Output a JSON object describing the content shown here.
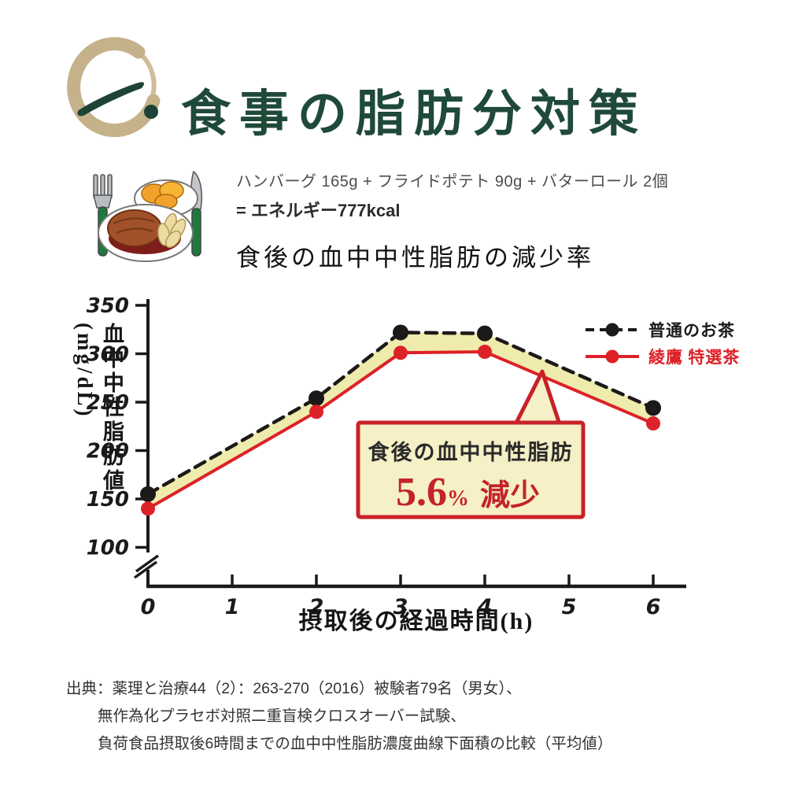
{
  "header": {
    "section_marker_icon": "一、",
    "title": "食事の脂肪分対策",
    "title_color": "#1f4938",
    "enso_color": "#c6b28a"
  },
  "meal": {
    "items_line": "ハンバーグ 165g + フライドポテト 90g + バターロール 2個",
    "energy_line": "= エネルギー777kcal",
    "chart_title": "食後の血中中性脂肪の減少率"
  },
  "chart_data": {
    "type": "line",
    "x": [
      0,
      2,
      3,
      4,
      6
    ],
    "series": [
      {
        "name": "普通のお茶",
        "color": "#1c1a18",
        "line_style": "dashed",
        "values": [
          155,
          254,
          322,
          321,
          244
        ]
      },
      {
        "name": "綾鷹 特選茶",
        "color": "#dd2128",
        "line_style": "solid",
        "values": [
          140,
          240,
          301,
          302,
          228
        ]
      }
    ],
    "fill_between_color": "#eeebac",
    "xlabel": "摂取後の経過時間(h)",
    "ylabel": "血中中性脂肪値(mg/dL)",
    "xticks": [
      0,
      1,
      2,
      3,
      4,
      5,
      6
    ],
    "yticks": [
      100,
      150,
      200,
      250,
      300,
      350
    ],
    "ylim": [
      100,
      350
    ],
    "axis_break": true,
    "grid": false,
    "legend_position": "top-right",
    "annotation": {
      "line1": "食後の血中中性脂肪",
      "value": "5.6",
      "percent_sign": "%",
      "suffix": "減少",
      "box_fill": "#f5f0c5",
      "box_border": "#c92129",
      "value_color": "#c4232b",
      "line1_color": "#2a2a2a"
    }
  },
  "footer": {
    "lines": [
      "出典：薬理と治療44（2）：263-270（2016）被験者79名（男女）、",
      "無作為化プラセボ対照二重盲検クロスオーバー試験、",
      "負荷食品摂取後6時間までの血中中性脂肪濃度曲線下面積の比較（平均値）"
    ]
  }
}
